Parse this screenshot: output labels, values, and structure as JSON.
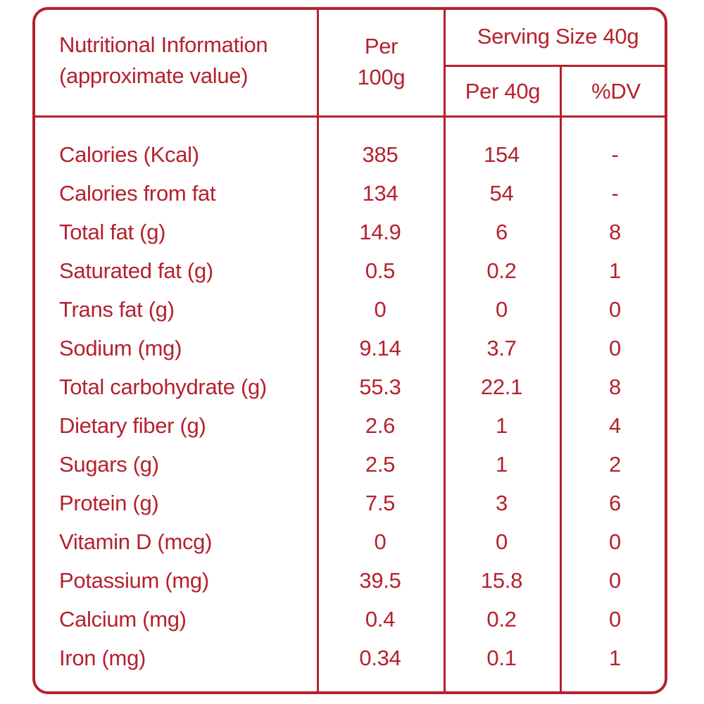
{
  "header": {
    "title_line1": "Nutritional Information",
    "title_line2": "(approximate value)",
    "per100_line1": "Per",
    "per100_line2": "100g",
    "serving_size": "Serving Size 40g",
    "per40": "Per 40g",
    "dv": "%DV"
  },
  "rows": [
    {
      "name": "Calories (Kcal)",
      "per100": "385",
      "per40": "154",
      "dv": "-"
    },
    {
      "name": "Calories from fat",
      "per100": "134",
      "per40": "54",
      "dv": "-"
    },
    {
      "name": "Total fat (g)",
      "per100": "14.9",
      "per40": "6",
      "dv": "8"
    },
    {
      "name": "Saturated fat (g)",
      "per100": "0.5",
      "per40": "0.2",
      "dv": "1"
    },
    {
      "name": "Trans fat (g)",
      "per100": "0",
      "per40": "0",
      "dv": "0"
    },
    {
      "name": "Sodium (mg)",
      "per100": "9.14",
      "per40": "3.7",
      "dv": "0"
    },
    {
      "name": "Total carbohydrate (g)",
      "per100": "55.3",
      "per40": "22.1",
      "dv": "8"
    },
    {
      "name": "Dietary fiber (g)",
      "per100": "2.6",
      "per40": "1",
      "dv": "4"
    },
    {
      "name": "Sugars (g)",
      "per100": "2.5",
      "per40": "1",
      "dv": "2"
    },
    {
      "name": "Protein (g)",
      "per100": "7.5",
      "per40": "3",
      "dv": "6"
    },
    {
      "name": "Vitamin D (mcg)",
      "per100": "0",
      "per40": "0",
      "dv": "0"
    },
    {
      "name": "Potassium (mg)",
      "per100": "39.5",
      "per40": "15.8",
      "dv": "0"
    },
    {
      "name": "Calcium (mg)",
      "per100": "0.4",
      "per40": "0.2",
      "dv": "0"
    },
    {
      "name": "Iron (mg)",
      "per100": "0.34",
      "per40": "0.1",
      "dv": "1"
    }
  ],
  "colors": {
    "accent": "#b5212d",
    "background": "#ffffff"
  }
}
